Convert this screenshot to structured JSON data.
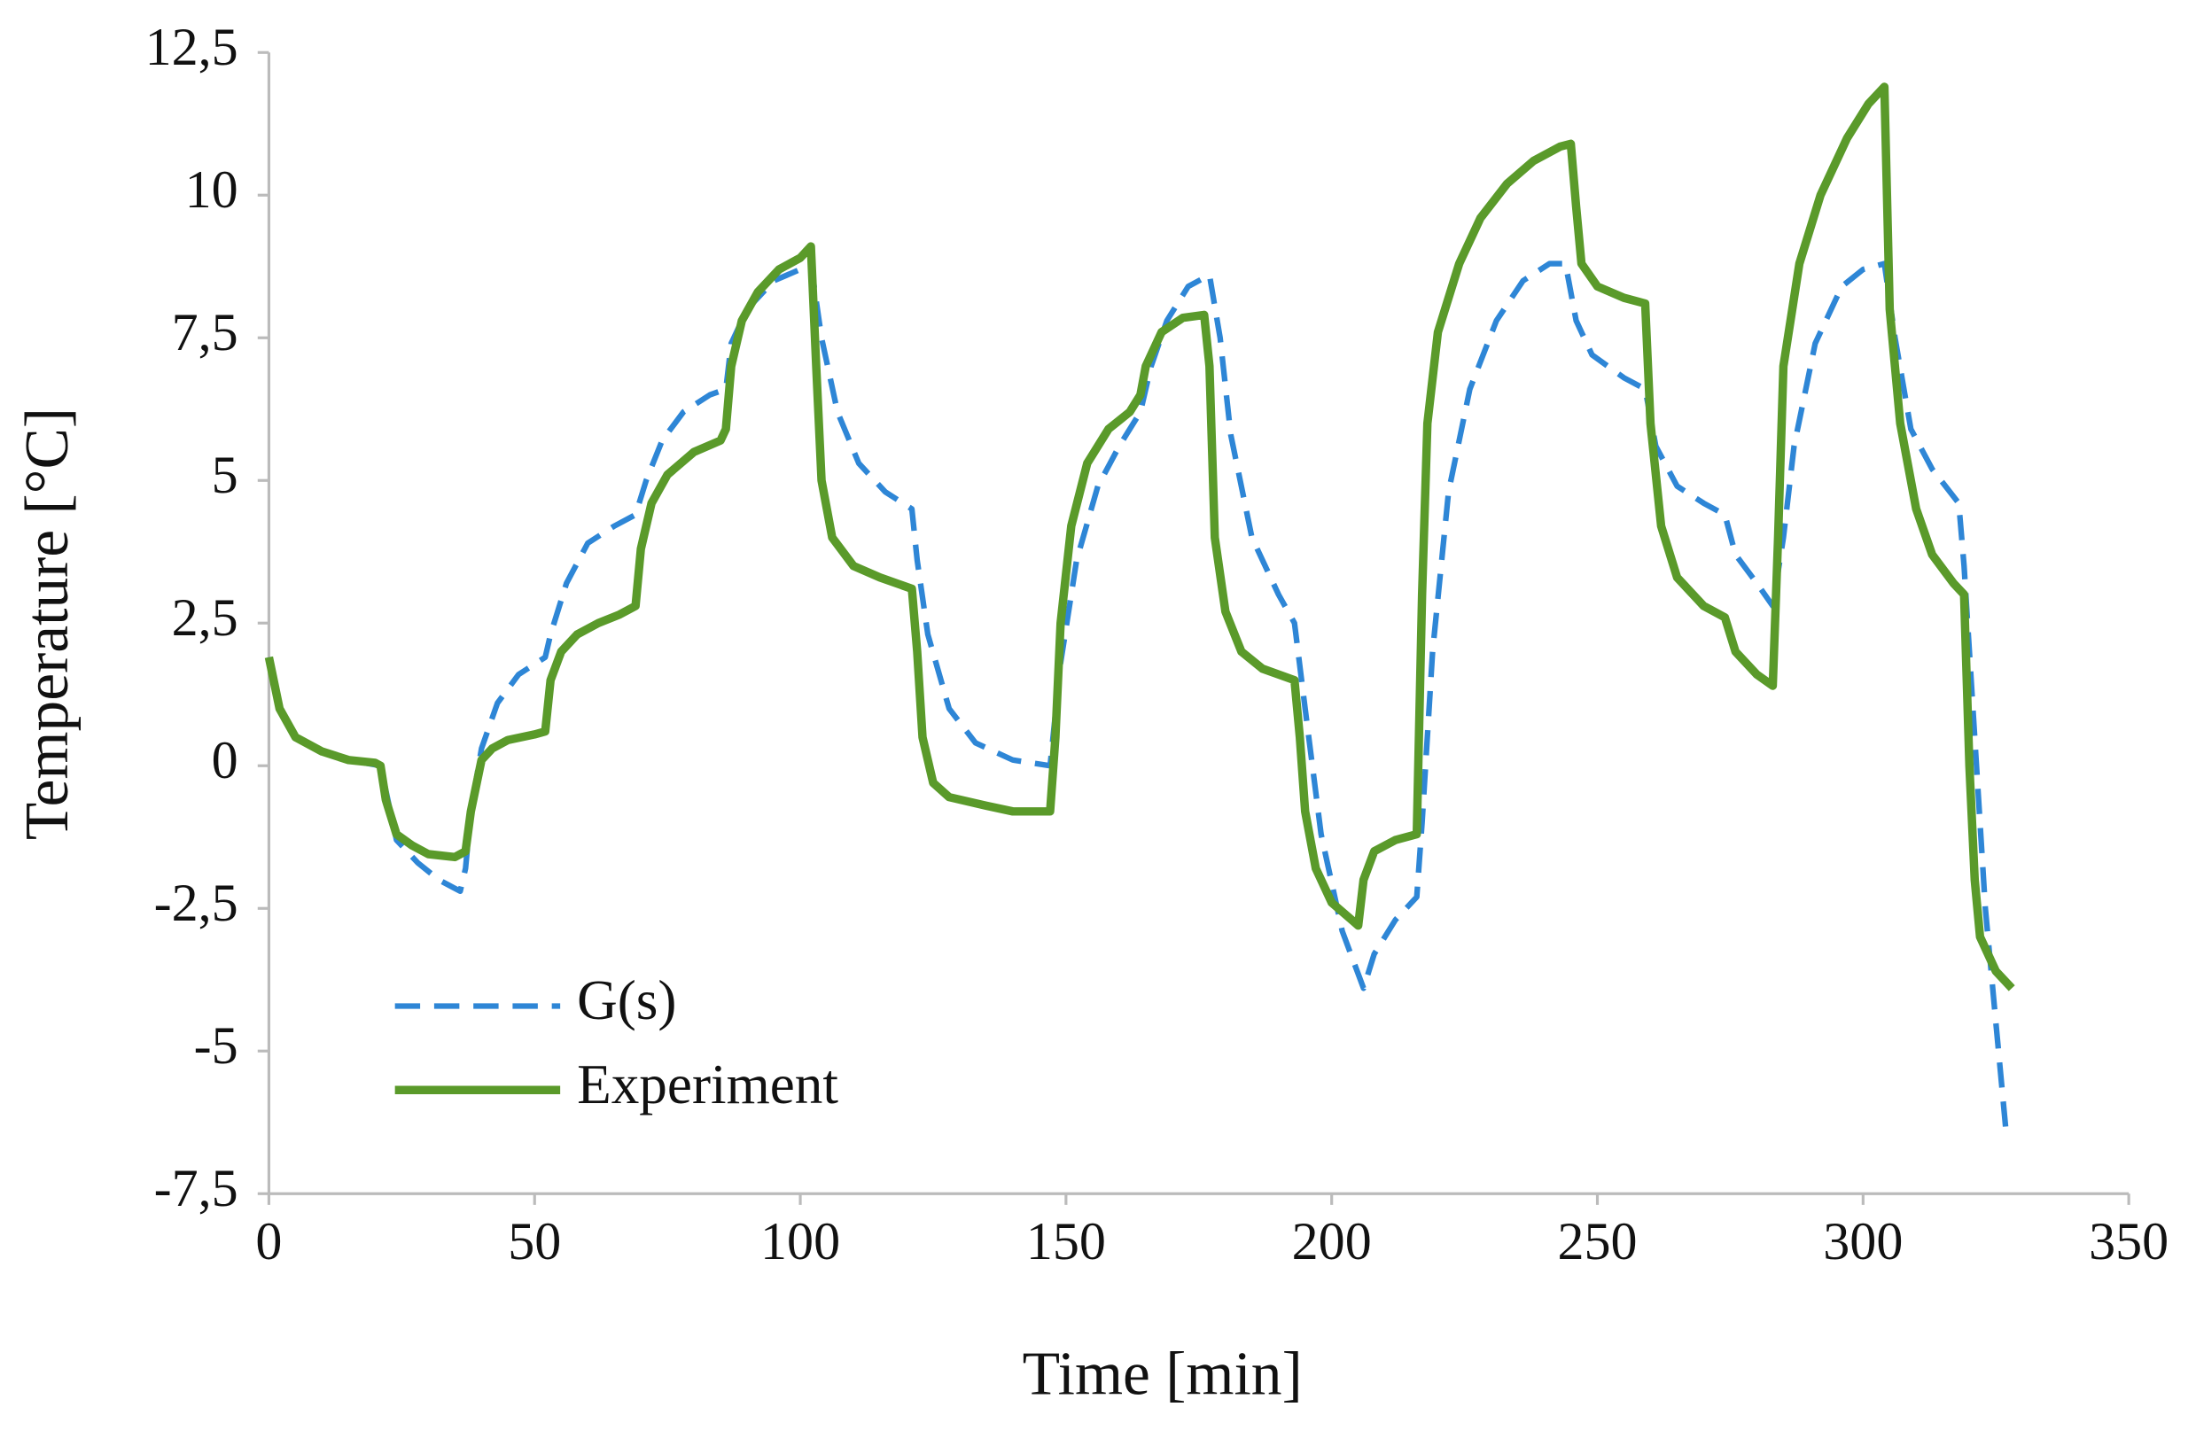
{
  "chart_data": {
    "type": "line",
    "xlabel": "Time [min]",
    "ylabel": "Temperature [°C]",
    "xlim": [
      0,
      350
    ],
    "xticks": [
      0,
      50,
      100,
      150,
      200,
      250,
      300,
      350
    ],
    "ylim": [
      -7.5,
      12.5
    ],
    "yticks": [
      {
        "value": -7.5,
        "label": "-7,5"
      },
      -5,
      {
        "value": -2.5,
        "label": "-2,5"
      },
      0,
      {
        "value": 2.5,
        "label": "2,5"
      },
      5,
      {
        "value": 7.5,
        "label": "7,5"
      },
      10,
      {
        "value": 12.5,
        "label": "12,5"
      }
    ],
    "legend": "lower left",
    "series": [
      {
        "name": "G(s)",
        "color": "#2e86d6",
        "dash": true,
        "x": [
          0,
          2,
          5,
          10,
          15,
          21,
          24,
          28,
          32,
          36,
          37,
          38,
          40,
          43,
          47,
          52,
          53,
          56,
          60,
          65,
          69,
          71,
          74,
          78,
          83,
          86,
          87,
          90,
          95,
          100,
          102,
          104,
          107,
          111,
          116,
          121,
          122,
          124,
          128,
          133,
          140,
          147,
          149,
          152,
          156,
          160,
          164,
          166,
          169,
          173,
          177,
          179,
          181,
          185,
          190,
          193,
          195,
          198,
          202,
          206,
          208,
          212,
          216,
          217,
          219,
          222,
          226,
          231,
          236,
          241,
          244,
          246,
          249,
          255,
          259,
          261,
          265,
          270,
          274,
          276,
          280,
          283,
          285,
          287,
          291,
          296,
          300,
          304,
          306,
          309,
          313,
          318,
          319,
          321,
          323,
          325,
          327
        ],
        "values": [
          1.9,
          1.0,
          0.5,
          0.25,
          0.1,
          0.0,
          -1.3,
          -1.7,
          -2.0,
          -2.2,
          -1.8,
          -0.8,
          0.3,
          1.1,
          1.6,
          1.9,
          2.3,
          3.2,
          3.9,
          4.2,
          4.4,
          5.0,
          5.7,
          6.2,
          6.5,
          6.6,
          7.4,
          8.0,
          8.5,
          8.7,
          8.8,
          7.5,
          6.2,
          5.3,
          4.8,
          4.5,
          3.6,
          2.3,
          1.0,
          0.4,
          0.1,
          0.0,
          1.8,
          3.6,
          4.9,
          5.6,
          6.2,
          7.0,
          7.8,
          8.4,
          8.6,
          7.5,
          5.8,
          4.0,
          3.0,
          2.5,
          1.0,
          -1.2,
          -2.9,
          -3.9,
          -3.3,
          -2.7,
          -2.3,
          -1.0,
          2.0,
          4.8,
          6.6,
          7.8,
          8.5,
          8.8,
          8.8,
          7.8,
          7.2,
          6.8,
          6.6,
          5.6,
          4.9,
          4.6,
          4.4,
          3.7,
          3.2,
          2.8,
          4.0,
          5.6,
          7.4,
          8.4,
          8.7,
          8.8,
          7.5,
          5.9,
          5.2,
          4.6,
          3.5,
          0.5,
          -2.5,
          -4.5,
          -6.5
        ]
      },
      {
        "name": "Experiment",
        "color": "#5a9a2a",
        "dash": false,
        "x": [
          0,
          2,
          5,
          10,
          15,
          20,
          21,
          22,
          24,
          27,
          30,
          35,
          37,
          38,
          40,
          42,
          45,
          50,
          52,
          53,
          55,
          58,
          62,
          66,
          69,
          70,
          72,
          75,
          80,
          85,
          86,
          87,
          89,
          92,
          96,
          100,
          102,
          103,
          104,
          106,
          110,
          115,
          121,
          122,
          123,
          125,
          128,
          135,
          140,
          147,
          148,
          149,
          151,
          154,
          158,
          162,
          164,
          165,
          168,
          172,
          176,
          177,
          178,
          180,
          183,
          187,
          193,
          194,
          195,
          197,
          200,
          205,
          206,
          208,
          212,
          216,
          217,
          218,
          220,
          224,
          228,
          233,
          238,
          243,
          245,
          246,
          247,
          250,
          255,
          259,
          260,
          262,
          265,
          270,
          274,
          276,
          280,
          283,
          284,
          285,
          288,
          292,
          297,
          301,
          304,
          305,
          307,
          310,
          313,
          317,
          319,
          320,
          321,
          322,
          325,
          328
        ],
        "values": [
          1.9,
          1.0,
          0.5,
          0.25,
          0.1,
          0.05,
          0.0,
          -0.6,
          -1.2,
          -1.4,
          -1.55,
          -1.6,
          -1.5,
          -0.8,
          0.1,
          0.3,
          0.45,
          0.55,
          0.6,
          1.5,
          2.0,
          2.3,
          2.5,
          2.65,
          2.8,
          3.8,
          4.6,
          5.1,
          5.5,
          5.7,
          5.9,
          7.0,
          7.8,
          8.3,
          8.7,
          8.9,
          9.1,
          7.0,
          5.0,
          4.0,
          3.5,
          3.3,
          3.1,
          2.0,
          0.5,
          -0.3,
          -0.55,
          -0.7,
          -0.8,
          -0.8,
          0.5,
          2.5,
          4.2,
          5.3,
          5.9,
          6.2,
          6.5,
          7.0,
          7.6,
          7.85,
          7.9,
          7.0,
          4.0,
          2.7,
          2.0,
          1.7,
          1.5,
          0.5,
          -0.8,
          -1.8,
          -2.4,
          -2.8,
          -2.0,
          -1.5,
          -1.3,
          -1.2,
          3.0,
          6.0,
          7.6,
          8.8,
          9.6,
          10.2,
          10.6,
          10.85,
          10.9,
          9.8,
          8.8,
          8.4,
          8.2,
          8.1,
          6.0,
          4.2,
          3.3,
          2.8,
          2.6,
          2.0,
          1.6,
          1.4,
          4.0,
          7.0,
          8.8,
          10.0,
          11.0,
          11.6,
          11.9,
          8.0,
          6.0,
          4.5,
          3.7,
          3.2,
          3.0,
          0.0,
          -2.0,
          -3.0,
          -3.6,
          -3.9
        ]
      }
    ]
  }
}
